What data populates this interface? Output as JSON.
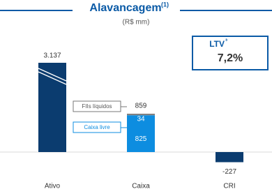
{
  "chart_data": {
    "type": "bar",
    "title": "Alavancagem",
    "title_superscript": "(1)",
    "subtitle": "(R$ mm)",
    "categories": [
      "Ativo",
      "Caixa",
      "CRI"
    ],
    "series": [
      {
        "color": "#0b3c6f",
        "values": [
          3137,
          null,
          -227
        ],
        "value_labels": [
          "3.137",
          null,
          null
        ]
      },
      {
        "name": "Caixa livre",
        "color": "#0d8de0",
        "values": [
          null,
          825,
          null
        ]
      },
      {
        "name": "FIIs líquidos",
        "color": "#808080",
        "values": [
          null,
          34,
          null
        ]
      }
    ],
    "totals": [
      null,
      859,
      null
    ],
    "annotation": {
      "label": "LTV",
      "superscript": "³",
      "value": "7,2%"
    }
  }
}
